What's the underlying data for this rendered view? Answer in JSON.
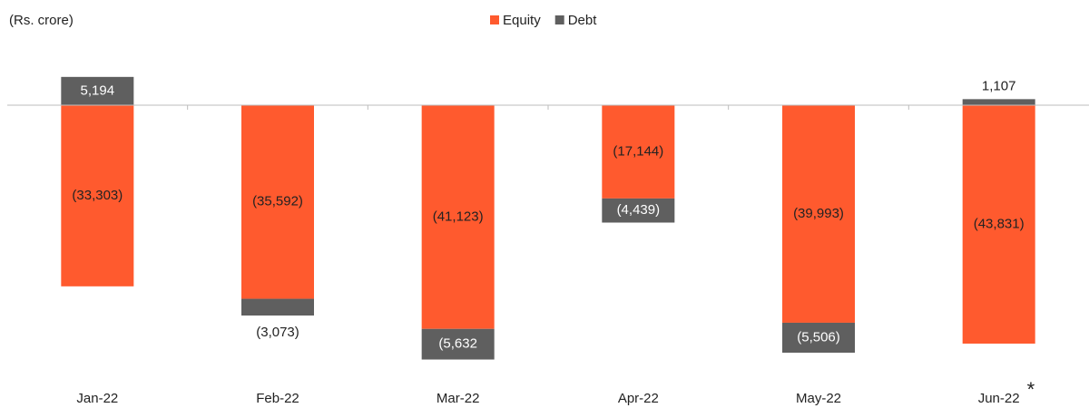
{
  "chart_data": {
    "type": "bar",
    "stacked": true,
    "unit_label": "(Rs. crore)",
    "categories": [
      "Jan-22",
      "Feb-22",
      "Mar-22",
      "Apr-22",
      "May-22",
      "Jun-22"
    ],
    "annotation": "*",
    "series": [
      {
        "name": "Equity",
        "color": "#ff5a2e",
        "values": [
          -33303,
          -35592,
          -41123,
          -17144,
          -39993,
          -43831
        ],
        "value_labels": [
          "(33,303)",
          "(35,592)",
          "(41,123)",
          "(17,144)",
          "(39,993)",
          "(43,831)"
        ]
      },
      {
        "name": "Debt",
        "color": "#5f5f5f",
        "values": [
          5194,
          -3073,
          -5632,
          -4439,
          -5506,
          1107
        ],
        "value_labels": [
          "5,194",
          "(3,073)",
          "(5,632",
          "(4,439)",
          "(5,506)",
          "1,107"
        ]
      }
    ],
    "ylim": [
      -50000,
      10000
    ],
    "legend": "top"
  }
}
